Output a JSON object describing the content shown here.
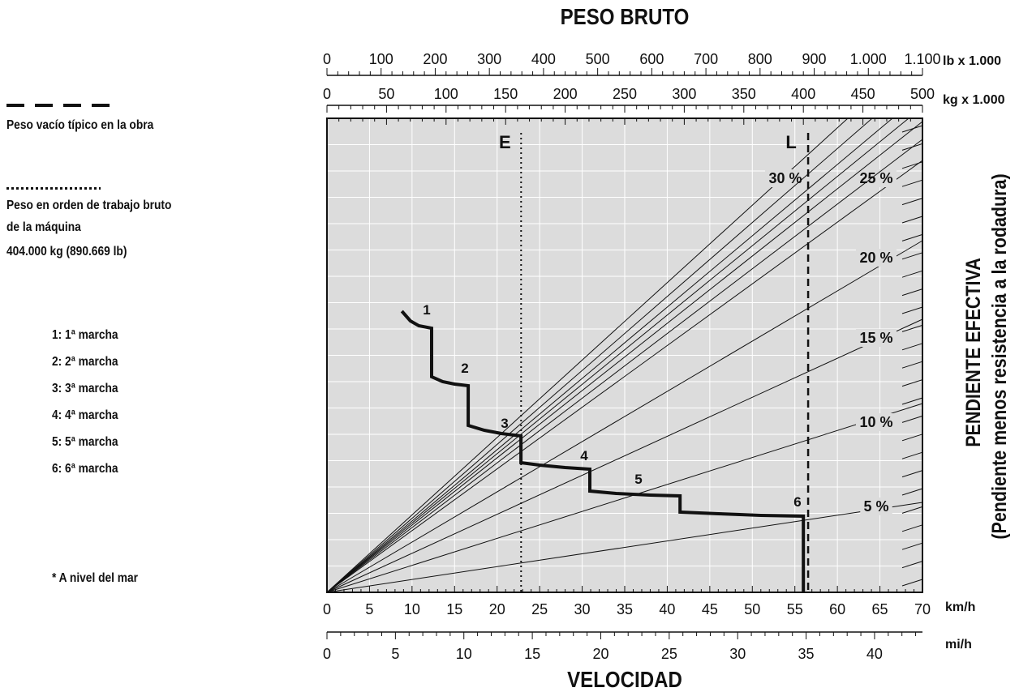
{
  "legend": {
    "empty_weight": "Peso vacío típico en la obra",
    "gross_weight_line1": "Peso en orden de trabajo bruto",
    "gross_weight_line2": "de la máquina",
    "gross_weight_value": "404.000 kg (890.669 lb)",
    "gears": [
      {
        "num": "1",
        "label": "1: 1ª marcha"
      },
      {
        "num": "2",
        "label": "2: 2ª marcha"
      },
      {
        "num": "3",
        "label": "3: 3ª marcha"
      },
      {
        "num": "4",
        "label": "4: 4ª marcha"
      },
      {
        "num": "5",
        "label": "5: 5ª marcha"
      },
      {
        "num": "6",
        "label": "6: 6ª marcha"
      }
    ],
    "sea_level": "* A nivel del mar"
  },
  "chart_data": {
    "type": "line",
    "title": "PESO BRUTO",
    "xlabel": "VELOCIDAD",
    "right_label_1": "PENDIENTE EFECTIVA",
    "right_label_2": "(Pendiente menos resistencia a la rodadura)",
    "top_axis_lb": {
      "unit": "lb x 1.000",
      "range": [
        0,
        1100
      ],
      "ticks": [
        "0",
        "100",
        "200",
        "300",
        "400",
        "500",
        "600",
        "700",
        "800",
        "900",
        "1.000",
        "1.100"
      ]
    },
    "top_axis_kg": {
      "unit": "kg x 1.000",
      "range": [
        0,
        500
      ],
      "ticks": [
        "0",
        "50",
        "100",
        "150",
        "200",
        "250",
        "300",
        "350",
        "400",
        "450",
        "500"
      ]
    },
    "bottom_axis_kmh": {
      "unit": "km/h",
      "range": [
        0,
        70
      ],
      "ticks": [
        "0",
        "5",
        "10",
        "15",
        "20",
        "25",
        "30",
        "35",
        "40",
        "45",
        "50",
        "55",
        "60",
        "65",
        "70"
      ]
    },
    "bottom_axis_mph": {
      "unit": "mi/h",
      "range": [
        0,
        43.5
      ],
      "ticks": [
        "0",
        "5",
        "10",
        "15",
        "20",
        "25",
        "30",
        "35",
        "40"
      ]
    },
    "grade_lines": [
      {
        "label": "30 %",
        "value": 30,
        "label_shown": true
      },
      {
        "label": "25 %",
        "value": 25,
        "label_shown": true
      },
      {
        "label": "20 %",
        "value": 20,
        "label_shown": true
      },
      {
        "label": "15 %",
        "value": 15,
        "label_shown": true
      },
      {
        "label": "10 %",
        "value": 10,
        "label_shown": true
      },
      {
        "label": "5 %",
        "value": 5,
        "label_shown": true
      }
    ],
    "grade_ticks_right": [
      2,
      4,
      6,
      8,
      10,
      12,
      14,
      16,
      18,
      20,
      22,
      24,
      26,
      28,
      30
    ],
    "empty_weight_line": {
      "label": "E",
      "kg_x1000": 163
    },
    "loaded_weight_line": {
      "label": "L",
      "kg_x1000": 404
    },
    "rimpull_curve_kmh": [
      [
        8.8,
        0.0
      ],
      [
        9.8,
        0.12
      ],
      [
        10.8,
        0.18
      ],
      [
        12.3,
        0.2
      ],
      [
        12.3,
        0.0
      ],
      [
        12.3,
        1.92
      ],
      [
        13.6,
        2.05
      ],
      [
        15.0,
        2.1
      ],
      [
        16.6,
        2.13
      ],
      [
        16.6,
        0.0
      ],
      [
        16.6,
        3.58
      ],
      [
        18.5,
        3.72
      ],
      [
        20.5,
        3.8
      ],
      [
        22.8,
        3.85
      ],
      [
        22.8,
        0.0
      ],
      [
        22.8,
        4.98
      ],
      [
        25.0,
        5.07
      ],
      [
        28.0,
        5.15
      ],
      [
        30.9,
        5.18
      ],
      [
        30.9,
        0.0
      ],
      [
        30.9,
        6.08
      ],
      [
        34.0,
        6.18
      ],
      [
        38.0,
        6.25
      ],
      [
        41.5,
        6.28
      ],
      [
        41.5,
        0.0
      ],
      [
        41.5,
        6.95
      ],
      [
        46.0,
        7.02
      ],
      [
        51.0,
        7.08
      ],
      [
        56.0,
        7.12
      ],
      [
        56.0,
        0.0
      ],
      [
        56.0,
        10.0
      ]
    ],
    "curve_labels": [
      "1",
      "2",
      "3",
      "4",
      "5",
      "6"
    ]
  },
  "colors": {
    "plot_bg": "#dcdcdc",
    "grid": "#ffffff",
    "line": "#111111"
  }
}
